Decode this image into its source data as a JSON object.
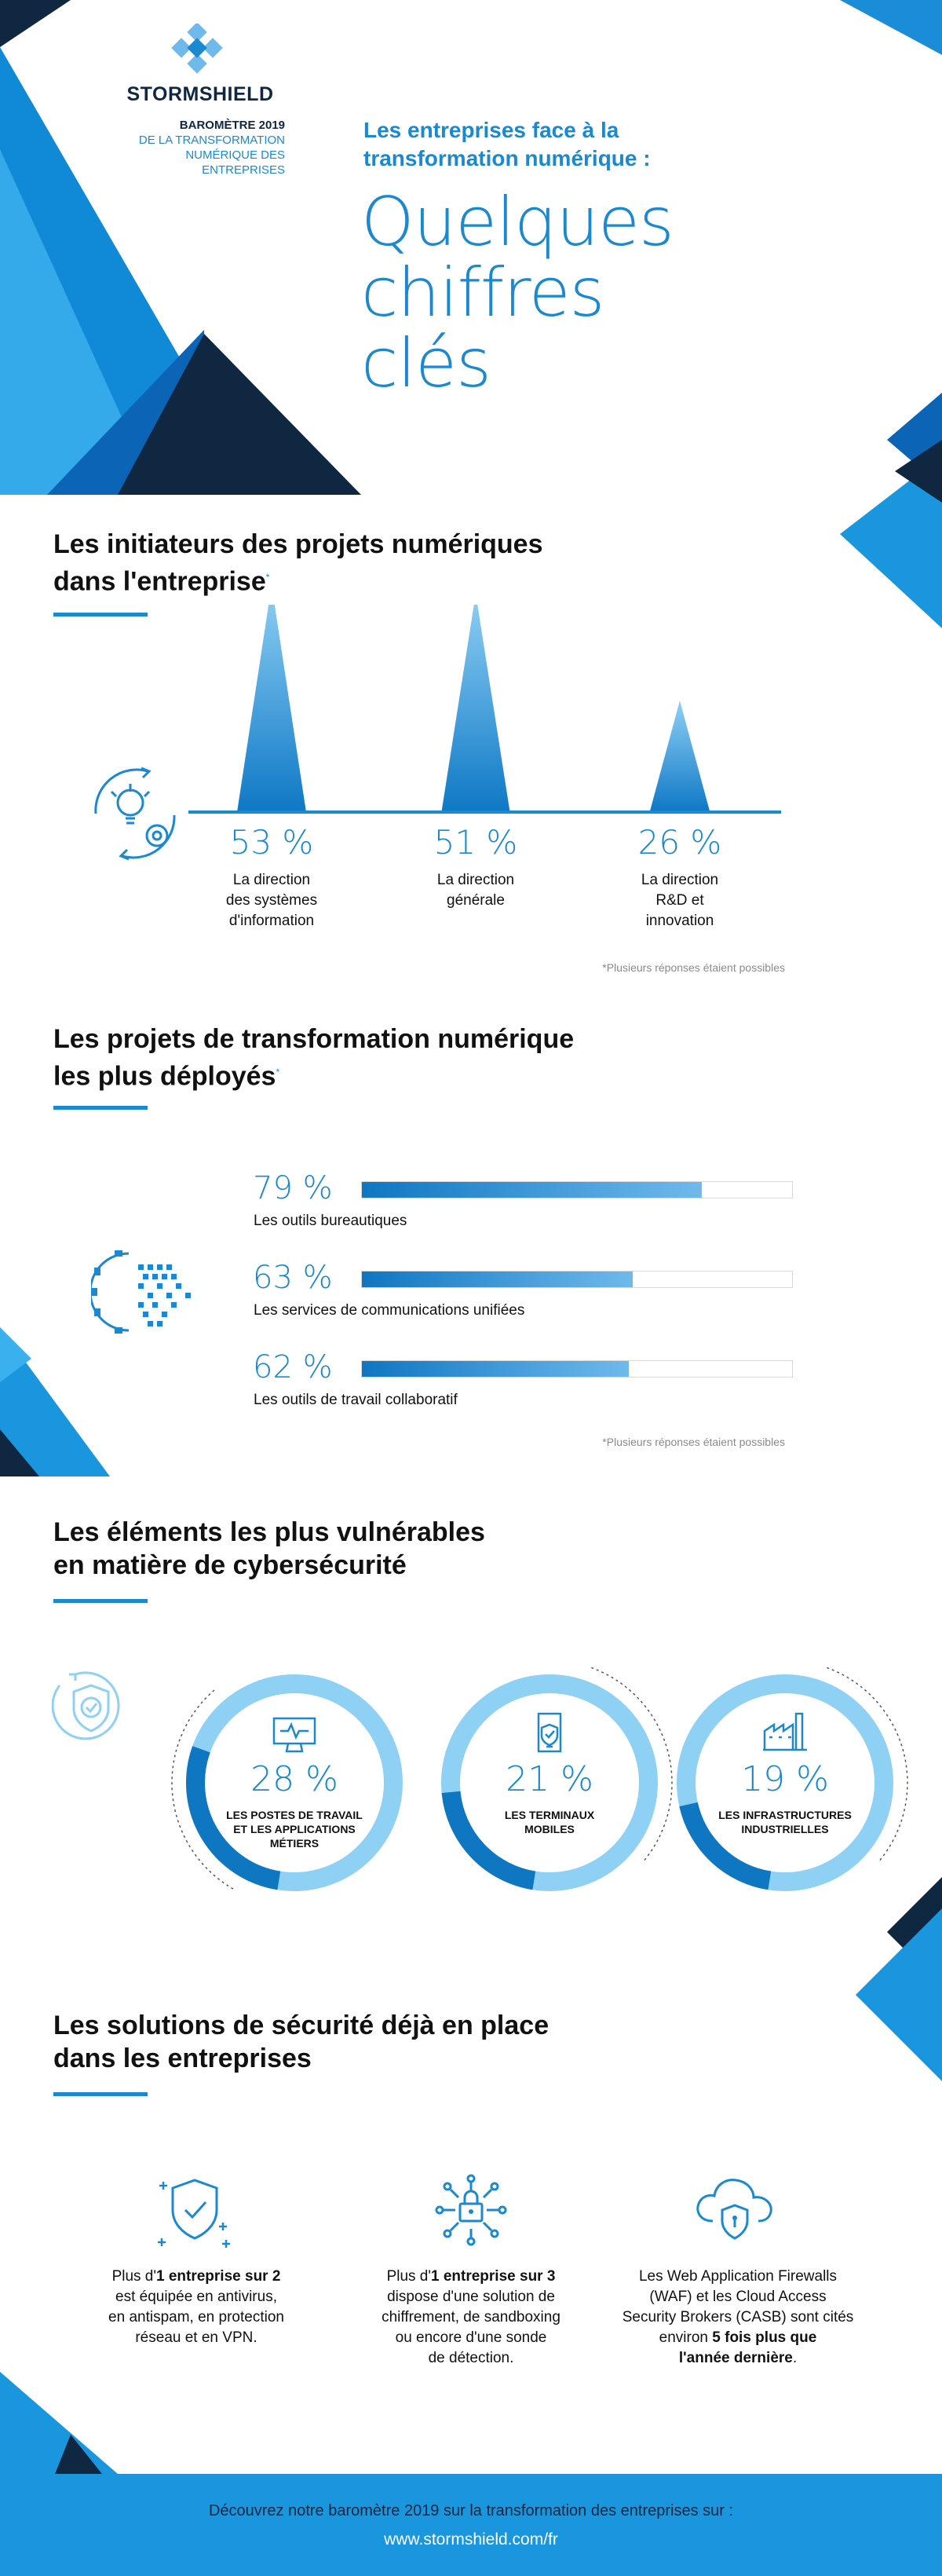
{
  "brand": {
    "name": "STORMSHIELD",
    "baro_line1": "BAROMÈTRE 2019",
    "baro_line2": "DE LA TRANSFORMATION",
    "baro_line3": "NUMÉRIQUE DES",
    "baro_line4": "ENTREPRISES"
  },
  "hero": {
    "intro_line1": "Les entreprises face à la",
    "intro_line2": "transformation numérique :",
    "big_line1": "Quelques",
    "big_line2": "chiffres",
    "big_line3": "clés"
  },
  "section1": {
    "title_line1": "Les initiateurs des projets numériques",
    "title_line2": "dans l'entreprise",
    "marker": "*",
    "note": "*Plusieurs réponses étaient possibles",
    "items": [
      {
        "pct": "53 %",
        "label_lines": [
          "La direction",
          "des systèmes",
          "d'information"
        ]
      },
      {
        "pct": "51 %",
        "label_lines": [
          "La direction",
          "générale"
        ]
      },
      {
        "pct": "26 %",
        "label_lines": [
          "La direction",
          "R&D et",
          "innovation"
        ]
      }
    ]
  },
  "section2": {
    "title_line1": "Les projets de transformation numérique",
    "title_line2": "les plus déployés",
    "marker": "*",
    "note": "*Plusieurs réponses étaient possibles",
    "items": [
      {
        "pct": "79 %",
        "label": "Les outils bureautiques"
      },
      {
        "pct": "63 %",
        "label": "Les services de communications unifiées"
      },
      {
        "pct": "62 %",
        "label": "Les outils de travail collaboratif"
      }
    ]
  },
  "section3": {
    "title_line1": "Les éléments les plus vulnérables",
    "title_line2": "en matière de cybersécurité",
    "items": [
      {
        "pct": "28 %",
        "label_lines": [
          "LES POSTES DE TRAVAIL",
          "ET LES APPLICATIONS",
          "MÉTIERS"
        ]
      },
      {
        "pct": "21 %",
        "label_lines": [
          "LES TERMINAUX",
          "MOBILES"
        ]
      },
      {
        "pct": "19 %",
        "label_lines": [
          "LES INFRASTRUCTURES",
          "INDUSTRIELLES"
        ]
      }
    ]
  },
  "section4": {
    "title_line1": "Les solutions de sécurité déjà en place",
    "title_line2": "dans les entreprises",
    "items": [
      {
        "line1_pre": "Plus d'",
        "line1_bold": "1 entreprise sur 2",
        "rest_lines": [
          "est équipée en antivirus,",
          "en antispam, en protection",
          "réseau et en VPN."
        ]
      },
      {
        "line1_pre": "Plus d'",
        "line1_bold": "1 entreprise sur 3",
        "rest_lines": [
          "dispose d'une solution de",
          "chiffrement, de sandboxing",
          "ou encore d'une sonde",
          "de détection."
        ]
      },
      {
        "lines": [
          "Les Web Application Firewalls",
          "(WAF) et les Cloud Access",
          "Security Brokers (CASB) sont cités"
        ],
        "line4_pre": "environ ",
        "line4_bold": "5 fois plus que",
        "line5_bold": "l'année dernière",
        "line5_post": "."
      }
    ]
  },
  "footer": {
    "text": "Découvrez notre baromètre 2019 sur la transformation des entreprises sur :",
    "url": "www.stormshield.com/fr"
  },
  "chart_data": [
    {
      "type": "bar",
      "title": "Les initiateurs des projets numériques dans l'entreprise",
      "categories": [
        "La direction des systèmes d'information",
        "La direction générale",
        "La direction R&D et innovation"
      ],
      "values": [
        53,
        51,
        26
      ],
      "ylim": [
        0,
        100
      ]
    },
    {
      "type": "bar",
      "title": "Les projets de transformation numérique les plus déployés",
      "categories": [
        "Les outils bureautiques",
        "Les services de communications unifiées",
        "Les outils de travail collaboratif"
      ],
      "values": [
        79,
        63,
        62
      ],
      "ylim": [
        0,
        100
      ]
    },
    {
      "type": "pie",
      "title": "Les éléments les plus vulnérables en matière de cybersécurité",
      "categories": [
        "Les postes de travail et les applications métiers",
        "Les terminaux mobiles",
        "Les infrastructures industrielles"
      ],
      "values": [
        28,
        21,
        19
      ]
    }
  ],
  "colors": {
    "primary": "#1a89d0",
    "light": "#8fd0f5",
    "dark": "#0f2741",
    "footer": "#1a96de"
  }
}
